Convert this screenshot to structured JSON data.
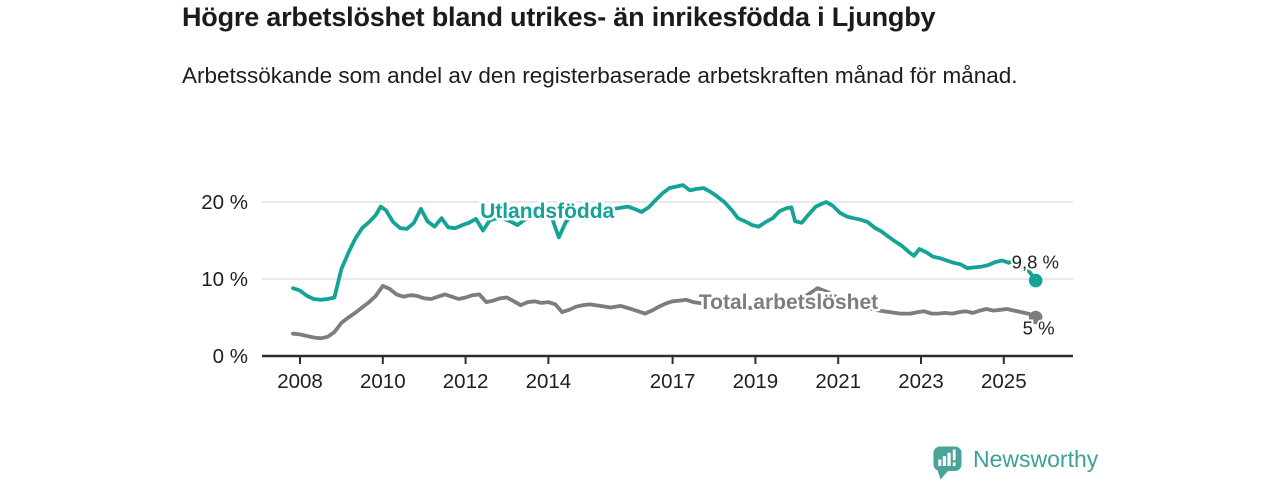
{
  "header": {
    "title": "Högre arbetslöshet bland utrikes- än inrikesfödda i Ljungby",
    "subtitle": "Arbetssökande som andel av den registerbaserade arbetskraften månad för månad."
  },
  "branding": {
    "logo_text": "Newsworthy",
    "logo_icon": "newsworthy-speech-bubble-bar-chart-icon",
    "icon_color": "#4ba39b",
    "text_color": "#3da09a"
  },
  "chart_data": {
    "type": "line",
    "title": "Högre arbetslöshet bland utrikes- än inrikesfödda i Ljungby",
    "subtitle": "Arbetssökande som andel av den registerbaserade arbetskraften månad för månad.",
    "grid": "horizontal",
    "legend_position": "inline-labels",
    "colors": {
      "grid": "#dcdcdc",
      "axis": "#2e2e2e",
      "tick_text": "#1f1f1f",
      "end_label_text": "#1f1f1f"
    },
    "x_axis": {
      "range": [
        2007.8,
        2026.7
      ],
      "ticks": [
        {
          "year": 2008,
          "label": "2008"
        },
        {
          "year": 2010,
          "label": "2010"
        },
        {
          "year": 2012,
          "label": "2012"
        },
        {
          "year": 2014,
          "label": "2014"
        },
        {
          "year": 2017,
          "label": "2017"
        },
        {
          "year": 2019,
          "label": "2019"
        },
        {
          "year": 2021,
          "label": "2021"
        },
        {
          "year": 2023,
          "label": "2023"
        },
        {
          "year": 2025,
          "label": "2025"
        }
      ]
    },
    "y_axis": {
      "range": [
        0,
        23.3
      ],
      "unit": "%",
      "ticks": [
        {
          "value": 0,
          "label": "0 %"
        },
        {
          "value": 10,
          "label": "10 %"
        },
        {
          "value": 20,
          "label": "20 %"
        }
      ]
    },
    "series": [
      {
        "name": "Utlandsfödda",
        "color": "#14a396",
        "label_at": [
          2013.97,
          18.8
        ],
        "end_label": "9,8 %",
        "end_value": 9.8,
        "points": [
          [
            2007.83,
            8.8
          ],
          [
            2008.0,
            8.5
          ],
          [
            2008.17,
            7.8
          ],
          [
            2008.33,
            7.4
          ],
          [
            2008.5,
            7.3
          ],
          [
            2008.67,
            7.4
          ],
          [
            2008.83,
            7.6
          ],
          [
            2009.0,
            11.3
          ],
          [
            2009.17,
            13.4
          ],
          [
            2009.33,
            15.2
          ],
          [
            2009.5,
            16.6
          ],
          [
            2009.67,
            17.4
          ],
          [
            2009.83,
            18.3
          ],
          [
            2009.95,
            19.4
          ],
          [
            2010.08,
            18.9
          ],
          [
            2010.25,
            17.4
          ],
          [
            2010.42,
            16.6
          ],
          [
            2010.58,
            16.5
          ],
          [
            2010.75,
            17.3
          ],
          [
            2010.92,
            19.1
          ],
          [
            2011.08,
            17.5
          ],
          [
            2011.25,
            16.8
          ],
          [
            2011.42,
            17.9
          ],
          [
            2011.58,
            16.7
          ],
          [
            2011.75,
            16.6
          ],
          [
            2011.92,
            17.0
          ],
          [
            2012.08,
            17.3
          ],
          [
            2012.25,
            17.8
          ],
          [
            2012.42,
            16.3
          ],
          [
            2012.58,
            17.6
          ],
          [
            2012.75,
            17.9
          ],
          [
            2012.92,
            17.8
          ],
          [
            2013.08,
            17.5
          ],
          [
            2013.25,
            17.0
          ],
          [
            2013.42,
            17.7
          ],
          [
            2013.58,
            18.0
          ],
          [
            2013.75,
            18.2
          ],
          [
            2013.92,
            18.3
          ],
          [
            2014.08,
            18.0
          ],
          [
            2014.25,
            15.4
          ],
          [
            2014.42,
            17.4
          ],
          [
            2014.58,
            18.2
          ],
          [
            2014.75,
            18.4
          ],
          [
            2014.92,
            18.5
          ],
          [
            2015.17,
            18.7
          ],
          [
            2015.42,
            18.9
          ],
          [
            2015.67,
            19.2
          ],
          [
            2015.92,
            19.4
          ],
          [
            2016.08,
            19.1
          ],
          [
            2016.25,
            18.7
          ],
          [
            2016.42,
            19.3
          ],
          [
            2016.58,
            20.2
          ],
          [
            2016.75,
            21.1
          ],
          [
            2016.92,
            21.8
          ],
          [
            2017.08,
            22.0
          ],
          [
            2017.25,
            22.2
          ],
          [
            2017.42,
            21.5
          ],
          [
            2017.58,
            21.7
          ],
          [
            2017.75,
            21.8
          ],
          [
            2017.92,
            21.3
          ],
          [
            2018.08,
            20.7
          ],
          [
            2018.25,
            20.0
          ],
          [
            2018.42,
            19.0
          ],
          [
            2018.58,
            17.9
          ],
          [
            2018.75,
            17.5
          ],
          [
            2018.92,
            17.0
          ],
          [
            2019.08,
            16.8
          ],
          [
            2019.25,
            17.4
          ],
          [
            2019.42,
            17.9
          ],
          [
            2019.58,
            18.8
          ],
          [
            2019.75,
            19.2
          ],
          [
            2019.87,
            19.3
          ],
          [
            2019.96,
            17.5
          ],
          [
            2020.12,
            17.3
          ],
          [
            2020.29,
            18.4
          ],
          [
            2020.46,
            19.4
          ],
          [
            2020.62,
            19.8
          ],
          [
            2020.71,
            20.0
          ],
          [
            2020.87,
            19.5
          ],
          [
            2021.04,
            18.6
          ],
          [
            2021.21,
            18.1
          ],
          [
            2021.37,
            17.9
          ],
          [
            2021.54,
            17.7
          ],
          [
            2021.71,
            17.4
          ],
          [
            2021.87,
            16.7
          ],
          [
            2022.04,
            16.2
          ],
          [
            2022.21,
            15.5
          ],
          [
            2022.37,
            14.9
          ],
          [
            2022.54,
            14.3
          ],
          [
            2022.71,
            13.5
          ],
          [
            2022.83,
            13.0
          ],
          [
            2022.96,
            13.9
          ],
          [
            2023.12,
            13.5
          ],
          [
            2023.29,
            12.9
          ],
          [
            2023.46,
            12.7
          ],
          [
            2023.62,
            12.4
          ],
          [
            2023.79,
            12.1
          ],
          [
            2023.96,
            11.9
          ],
          [
            2024.12,
            11.4
          ],
          [
            2024.29,
            11.5
          ],
          [
            2024.46,
            11.6
          ],
          [
            2024.62,
            11.8
          ],
          [
            2024.79,
            12.2
          ],
          [
            2024.96,
            12.4
          ],
          [
            2025.12,
            12.1
          ],
          [
            2025.21,
            12.3
          ],
          [
            2025.37,
            11.7
          ],
          [
            2025.54,
            11.4
          ],
          [
            2025.67,
            10.6
          ],
          [
            2025.77,
            9.8
          ]
        ]
      },
      {
        "name": "Total arbetslöshet",
        "color": "#7d7d7d",
        "label_at": [
          2019.8,
          7.0
        ],
        "end_label": "5 %",
        "end_value": 5,
        "points": [
          [
            2007.83,
            2.9
          ],
          [
            2008.0,
            2.8
          ],
          [
            2008.17,
            2.6
          ],
          [
            2008.33,
            2.4
          ],
          [
            2008.5,
            2.3
          ],
          [
            2008.67,
            2.5
          ],
          [
            2008.83,
            3.1
          ],
          [
            2009.0,
            4.3
          ],
          [
            2009.17,
            5.0
          ],
          [
            2009.33,
            5.6
          ],
          [
            2009.5,
            6.3
          ],
          [
            2009.67,
            7.0
          ],
          [
            2009.83,
            7.8
          ],
          [
            2010.0,
            9.1
          ],
          [
            2010.17,
            8.7
          ],
          [
            2010.33,
            8.0
          ],
          [
            2010.5,
            7.7
          ],
          [
            2010.67,
            7.9
          ],
          [
            2010.83,
            7.8
          ],
          [
            2011.0,
            7.5
          ],
          [
            2011.17,
            7.4
          ],
          [
            2011.33,
            7.7
          ],
          [
            2011.5,
            8.0
          ],
          [
            2011.67,
            7.7
          ],
          [
            2011.83,
            7.4
          ],
          [
            2012.0,
            7.6
          ],
          [
            2012.17,
            7.9
          ],
          [
            2012.33,
            8.0
          ],
          [
            2012.5,
            7.0
          ],
          [
            2012.67,
            7.2
          ],
          [
            2012.83,
            7.5
          ],
          [
            2013.0,
            7.6
          ],
          [
            2013.17,
            7.1
          ],
          [
            2013.33,
            6.6
          ],
          [
            2013.5,
            7.0
          ],
          [
            2013.67,
            7.1
          ],
          [
            2013.83,
            6.9
          ],
          [
            2014.0,
            7.0
          ],
          [
            2014.17,
            6.7
          ],
          [
            2014.33,
            5.7
          ],
          [
            2014.5,
            6.0
          ],
          [
            2014.67,
            6.4
          ],
          [
            2014.83,
            6.6
          ],
          [
            2015.0,
            6.7
          ],
          [
            2015.25,
            6.5
          ],
          [
            2015.5,
            6.3
          ],
          [
            2015.75,
            6.5
          ],
          [
            2016.0,
            6.1
          ],
          [
            2016.17,
            5.8
          ],
          [
            2016.33,
            5.5
          ],
          [
            2016.5,
            5.9
          ],
          [
            2016.67,
            6.4
          ],
          [
            2016.83,
            6.8
          ],
          [
            2017.0,
            7.1
          ],
          [
            2017.17,
            7.2
          ],
          [
            2017.33,
            7.3
          ],
          [
            2017.5,
            7.0
          ],
          [
            2017.75,
            6.8
          ],
          [
            2018.0,
            6.5
          ],
          [
            2018.25,
            6.2
          ],
          [
            2018.5,
            6.1
          ],
          [
            2018.75,
            6.2
          ],
          [
            2019.0,
            6.3
          ],
          [
            2019.25,
            6.4
          ],
          [
            2019.5,
            6.5
          ],
          [
            2019.75,
            6.3
          ],
          [
            2020.0,
            6.6
          ],
          [
            2020.25,
            7.9
          ],
          [
            2020.5,
            8.8
          ],
          [
            2020.75,
            8.3
          ],
          [
            2021.0,
            7.5
          ],
          [
            2021.25,
            7.0
          ],
          [
            2021.5,
            6.6
          ],
          [
            2021.75,
            6.2
          ],
          [
            2022.0,
            5.9
          ],
          [
            2022.25,
            5.7
          ],
          [
            2022.5,
            5.5
          ],
          [
            2022.75,
            5.5
          ],
          [
            2022.92,
            5.7
          ],
          [
            2023.08,
            5.8
          ],
          [
            2023.25,
            5.5
          ],
          [
            2023.42,
            5.5
          ],
          [
            2023.58,
            5.6
          ],
          [
            2023.75,
            5.5
          ],
          [
            2023.92,
            5.7
          ],
          [
            2024.08,
            5.8
          ],
          [
            2024.25,
            5.6
          ],
          [
            2024.42,
            5.9
          ],
          [
            2024.58,
            6.1
          ],
          [
            2024.75,
            5.9
          ],
          [
            2024.92,
            6.0
          ],
          [
            2025.08,
            6.1
          ],
          [
            2025.25,
            5.9
          ],
          [
            2025.42,
            5.7
          ],
          [
            2025.58,
            5.5
          ],
          [
            2025.71,
            5.3
          ],
          [
            2025.77,
            5.0
          ]
        ]
      }
    ]
  }
}
